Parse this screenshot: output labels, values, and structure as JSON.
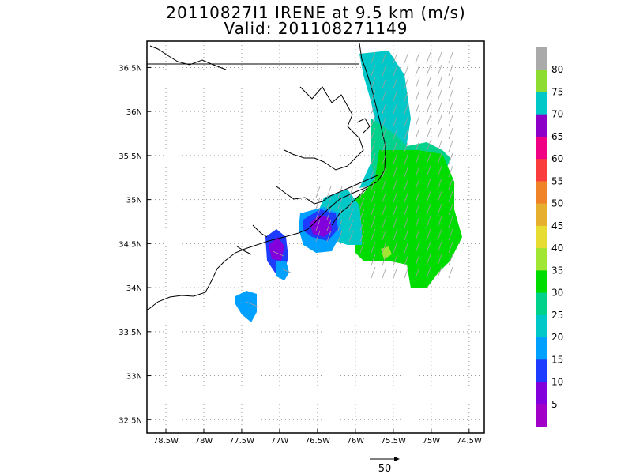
{
  "title_line1": "20110827I1 IRENE at 9.5 km (m/s)",
  "title_line2": "Valid: 201108271149",
  "map": {
    "lon_range": [
      -78.75,
      -74.3
    ],
    "lat_range": [
      32.35,
      36.8
    ],
    "x_tick_values": [
      -78.5,
      -78,
      -77.5,
      -77,
      -76.5,
      -76,
      -75.5,
      -75,
      -74.5
    ],
    "x_tick_labels": [
      "78.5W",
      "78W",
      "77.5W",
      "77W",
      "76.5W",
      "76W",
      "75.5W",
      "75W",
      "74.5W"
    ],
    "y_tick_values": [
      32.5,
      33,
      33.5,
      34,
      34.5,
      35,
      35.5,
      36,
      36.5
    ],
    "y_tick_labels": [
      "32.5N",
      "33N",
      "33.5N",
      "34N",
      "34.5N",
      "35N",
      "35.5N",
      "36N",
      "36.5N"
    ],
    "grid": "dotted",
    "wind_field_summary": "Doppler-derived wind speeds over eastern North Carolina; strongest 25-35 m/s east of Pamlico Sound, weaker 10-20 m/s near the coast around 34.6N 76.5W"
  },
  "colorbar": {
    "labels": [
      "5",
      "10",
      "15",
      "20",
      "25",
      "30",
      "35",
      "40",
      "45",
      "50",
      "55",
      "60",
      "65",
      "70",
      "75",
      "80"
    ],
    "colors": [
      "#a000c8",
      "#8200dc",
      "#1e3cff",
      "#00a0ff",
      "#00c8c8",
      "#00d28c",
      "#00dc00",
      "#a0e632",
      "#e6dc32",
      "#e6af2d",
      "#f08228",
      "#fa3c3c",
      "#f00082",
      "#8c00c8",
      "#00c8c8",
      "#8cdc32",
      "#aaaaaa"
    ]
  },
  "vector_key": {
    "label": "50"
  },
  "colors": {
    "c10": "#8200dc",
    "c15": "#1e3cff",
    "c20": "#00a0ff",
    "c25": "#00c8c8",
    "c30": "#00d28c",
    "c35": "#00dc00",
    "c40": "#a0e632",
    "coast": "#000000",
    "arrow": "#a0a0a0"
  }
}
